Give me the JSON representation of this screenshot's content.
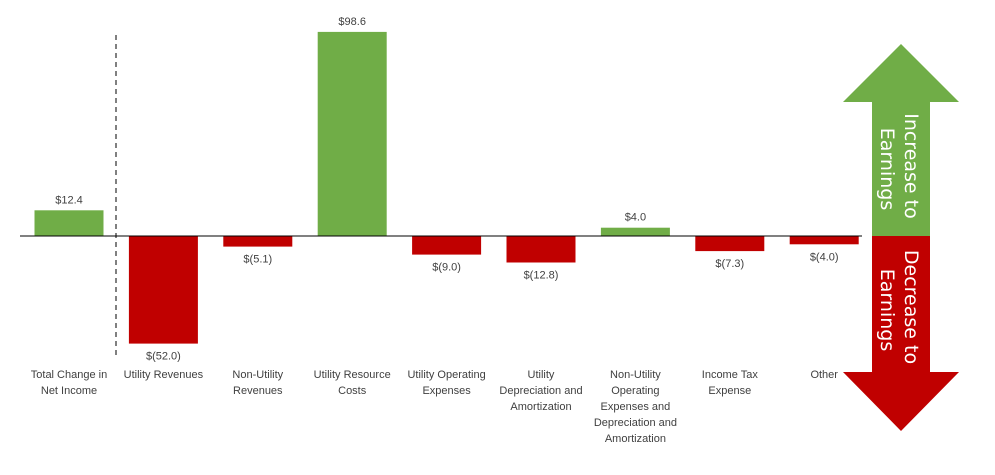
{
  "chart_data": {
    "type": "bar",
    "title": "",
    "xlabel": "",
    "ylabel": "",
    "ylim": [
      -60,
      100
    ],
    "categories": [
      [
        "Total Change in",
        "Net Income"
      ],
      [
        "Utility Revenues"
      ],
      [
        "Non-Utility",
        "Revenues"
      ],
      [
        "Utility Resource",
        "Costs"
      ],
      [
        "Utility Operating",
        "Expenses"
      ],
      [
        "Utility",
        "Depreciation and",
        "Amortization"
      ],
      [
        "Non-Utility",
        "Operating",
        "Expenses and",
        "Depreciation and",
        "Amortization"
      ],
      [
        "Income Tax",
        "Expense"
      ],
      [
        "Other"
      ]
    ],
    "values": [
      12.4,
      -52.0,
      -5.1,
      98.6,
      -9.0,
      -12.8,
      4.0,
      -7.3,
      -4.0
    ],
    "labels": [
      "$12.4",
      "$(52.0)",
      "$(5.1)",
      "$98.6",
      "$(9.0)",
      "$(12.8)",
      "$4.0",
      "$(7.3)",
      "$(4.0)"
    ],
    "positive_color": "#70ad47",
    "negative_color": "#c00000",
    "separator_after_first": true
  },
  "arrows": {
    "increase": [
      "Increase to",
      "Earnings"
    ],
    "decrease": [
      "Decrease to",
      "Earnings"
    ],
    "increase_color": "#70ad47",
    "decrease_color": "#c00000"
  }
}
